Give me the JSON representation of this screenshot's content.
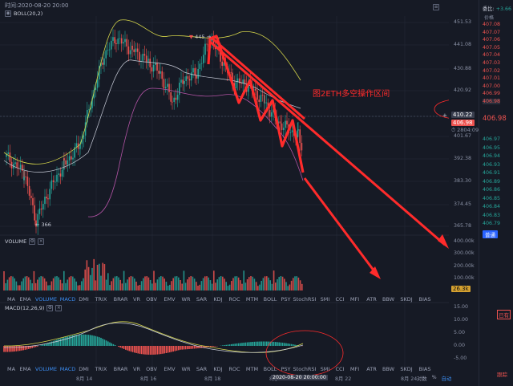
{
  "header": {
    "time_label": "时间:2020-08-20 20:00"
  },
  "indicators": {
    "boll": "BOLL(20,2)",
    "volume": "VOLUME",
    "macd": "MACD(12,26,9)"
  },
  "price_axis": [
    "451.53",
    "441.08",
    "430.88",
    "420.92",
    "410.22",
    "401.67",
    "392.38",
    "383.30",
    "374.45",
    "365.78",
    "400.00k",
    "300.00k",
    "200.00k",
    "100.00k",
    "15.00",
    "10.00",
    "5.00",
    "0.00",
    "-5.00"
  ],
  "current": {
    "price": "406.98",
    "countdown": "2804:09",
    "crosshair_price": "410.22",
    "volume_tag": "26.3k"
  },
  "markers": {
    "high": "445",
    "low": "366"
  },
  "annotation": "图2ETH多空操作区间",
  "indicator_tabs": [
    "MA",
    "EMA",
    "VOLUME",
    "MACD",
    "DMI",
    "TRIX",
    "BRAR",
    "VR",
    "OBV",
    "EMV",
    "WR",
    "SAR",
    "KDJ",
    "ROC",
    "MTM",
    "BOLL",
    "PSY",
    "StochRSI",
    "SMI",
    "CCI",
    "MFI",
    "ATR",
    "BBW",
    "SKDJ",
    "BIAS"
  ],
  "active_tabs": [
    "VOLUME",
    "MACD"
  ],
  "date_axis": [
    "8月 14",
    "8月 16",
    "8月 18",
    "8月",
    "8月 22",
    "8月 24"
  ],
  "date_highlight": "2020-08-20 20:00:00",
  "footer_buttons": {
    "log": "对数",
    "percent": "%",
    "auto": "自动"
  },
  "orderbook": {
    "title": "委比:",
    "ratio": "+3.66",
    "price_header": "价格",
    "asks": [
      "407.08",
      "407.07",
      "407.06",
      "407.05",
      "407.04",
      "407.03",
      "407.02",
      "407.01",
      "407.00",
      "406.99",
      "406.98"
    ],
    "last": "406.98",
    "bids": [
      "406.97",
      "406.95",
      "406.94",
      "406.93",
      "406.91",
      "406.89",
      "406.86",
      "406.85",
      "406.84",
      "406.83",
      "406.79"
    ],
    "mode_button": "普通",
    "side_labels": [
      "已有",
      "跟踪"
    ]
  },
  "colors": {
    "bg": "#161a25",
    "up": "#26a69a",
    "down": "#ef5350",
    "boll_upper": "#d4d44a",
    "boll_lower": "#b454a6",
    "accent": "#3b8cf0",
    "annotation": "#ff2b2b"
  }
}
